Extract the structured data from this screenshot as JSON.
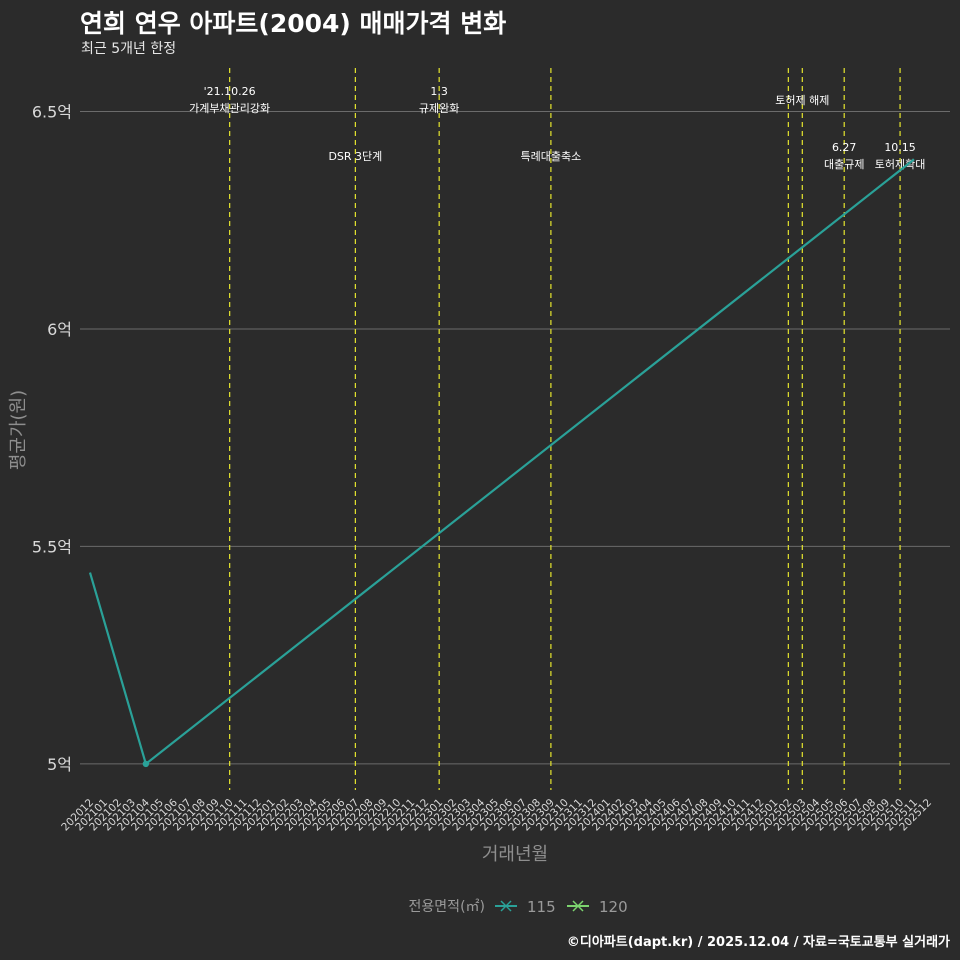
{
  "title": "연희 연우 아파트(2004) 매매가격 변화",
  "subtitle": "최근 5개년 한정",
  "credit": "©디아파트(dapt.kr) / 2025.12.04 / 자료=국토교통부 실거래가",
  "colors": {
    "background": "#2b2b2b",
    "grid": "#6b6b6b",
    "event_line": "#e6e62e",
    "series_115": "#2aa198",
    "series_120": "#7cd36e",
    "axis_text": "#d9d9d9"
  },
  "chart_data": {
    "type": "line",
    "title": "연희 연우 아파트(2004) 매매가격 변화",
    "xlabel": "거래년월",
    "ylabel": "평균가(원)",
    "ylim": [
      4.94,
      6.6
    ],
    "y_ticks": [
      5,
      5.5,
      6,
      6.5
    ],
    "y_tick_labels": [
      "5억",
      "5.5억",
      "6억",
      "6.5억"
    ],
    "grid": true,
    "categories": [
      "202012",
      "202101",
      "202102",
      "202103",
      "202104",
      "202105",
      "202106",
      "202107",
      "202108",
      "202109",
      "202110",
      "202111",
      "202112",
      "202201",
      "202202",
      "202203",
      "202204",
      "202205",
      "202206",
      "202207",
      "202208",
      "202209",
      "202210",
      "202211",
      "202212",
      "202301",
      "202302",
      "202303",
      "202304",
      "202305",
      "202306",
      "202307",
      "202308",
      "202309",
      "202310",
      "202311",
      "202312",
      "202401",
      "202402",
      "202403",
      "202404",
      "202405",
      "202406",
      "202407",
      "202408",
      "202409",
      "202410",
      "202411",
      "202412",
      "202501",
      "202502",
      "202503",
      "202504",
      "202505",
      "202506",
      "202507",
      "202508",
      "202509",
      "202510",
      "202511",
      "202512"
    ],
    "series": [
      {
        "name": "115",
        "points": [
          {
            "x": "202012",
            "y": 5.44
          },
          {
            "x": "202104",
            "y": 5.0
          },
          {
            "x": "202511",
            "y": 6.39
          }
        ],
        "markers": [
          "202104"
        ]
      },
      {
        "name": "120",
        "points": []
      }
    ],
    "events": [
      {
        "month": "202110",
        "label_top": "'21.10.26",
        "label_bottom": "가계부채관리강화",
        "row": 1
      },
      {
        "month": "202207",
        "label_top": "",
        "label_bottom": "DSR 3단계",
        "row": 2
      },
      {
        "month": "202301",
        "label_top": "1.3",
        "label_bottom": "규제완화",
        "row": 1
      },
      {
        "month": "202309",
        "label_top": "",
        "label_bottom": "특례대출축소",
        "row": 2
      },
      {
        "month": "202502",
        "label_top": "",
        "label_bottom": "",
        "row": 0
      },
      {
        "month": "202503",
        "label_top": "",
        "label_bottom": "토허제 해제",
        "row": 0
      },
      {
        "month": "202506",
        "label_top": "6.27",
        "label_bottom": "대출규제",
        "row": 2
      },
      {
        "month": "202510",
        "label_top": "10.15",
        "label_bottom": "토허제확대",
        "row": 2
      }
    ],
    "legend": {
      "title": "전용면적(㎡)",
      "entries": [
        "115",
        "120"
      ],
      "position": "bottom"
    }
  }
}
